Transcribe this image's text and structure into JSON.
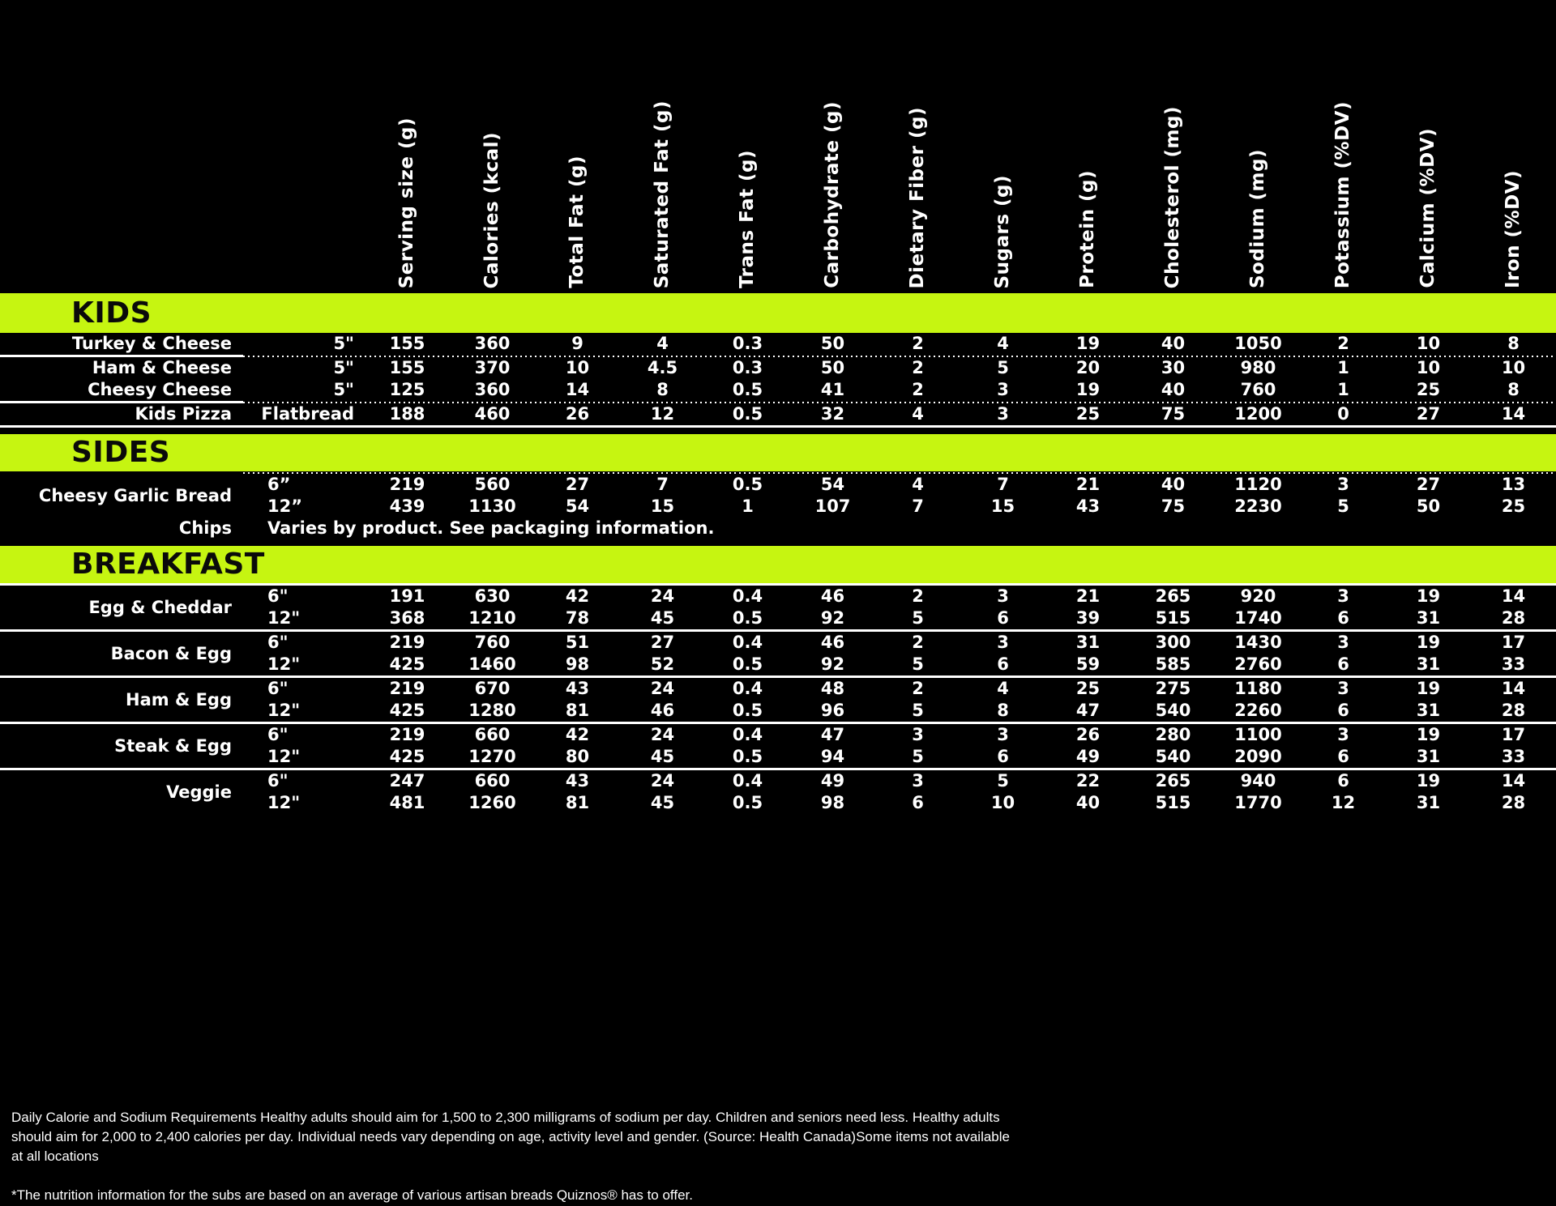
{
  "colors": {
    "background": "#000000",
    "accent_green": "#c6f511",
    "bar_text": "#0a0a0a",
    "table_text": "#ffffff"
  },
  "columns": [
    "Serving size (g)",
    "Calories (kcal)",
    "Total Fat (g)",
    "Saturated Fat (g)",
    "Trans Fat (g)",
    "Carbohydrate (g)",
    "Dietary Fiber (g)",
    "Sugars (g)",
    "Protein (g)",
    "Cholesterol (mg)",
    "Sodium (mg)",
    "Potassium (%DV)",
    "Calcium (%DV)",
    "Iron (%DV)"
  ],
  "sections": [
    {
      "title": "KIDS",
      "size_align": "right",
      "top_divider": null,
      "groups": [
        {
          "label": "Turkey & Cheese",
          "divider_after": "mixed",
          "rows": [
            {
              "size": "5\"",
              "values": [
                155,
                360,
                9,
                4,
                0.3,
                50,
                2,
                4,
                19,
                40,
                1050,
                2,
                10,
                8
              ]
            }
          ]
        },
        {
          "label": "Ham & Cheese",
          "divider_after": null,
          "rows": [
            {
              "size": "5\"",
              "values": [
                155,
                370,
                10,
                4.5,
                0.3,
                50,
                2,
                5,
                20,
                30,
                980,
                1,
                10,
                10
              ]
            }
          ]
        },
        {
          "label": "Cheesy Cheese",
          "divider_after": "mixed",
          "rows": [
            {
              "size": "5\"",
              "values": [
                125,
                360,
                14,
                8,
                0.5,
                41,
                2,
                3,
                19,
                40,
                760,
                1,
                25,
                8
              ]
            }
          ]
        },
        {
          "label": "Kids Pizza",
          "divider_after": "solid",
          "rows": [
            {
              "size": "Flatbread",
              "values": [
                188,
                460,
                26,
                12,
                0.5,
                32,
                4,
                3,
                25,
                75,
                1200,
                0,
                27,
                14
              ]
            }
          ]
        }
      ]
    },
    {
      "title": "SIDES",
      "size_align": "left",
      "top_divider": "dotted",
      "groups": [
        {
          "label": "Cheesy Garlic Bread",
          "divider_after": null,
          "rows": [
            {
              "size": "6”",
              "values": [
                219,
                560,
                27,
                7,
                0.5,
                54,
                4,
                7,
                21,
                40,
                1120,
                3,
                27,
                13
              ]
            },
            {
              "size": "12”",
              "values": [
                439,
                1130,
                54,
                15,
                1,
                107,
                7,
                15,
                43,
                75,
                2230,
                5,
                50,
                25
              ]
            }
          ]
        },
        {
          "label": "Chips",
          "divider_after": null,
          "note": "Varies by product. See packaging information."
        }
      ]
    },
    {
      "title": "BREAKFAST",
      "size_align": "left",
      "top_divider": "solid",
      "groups": [
        {
          "label": "Egg & Cheddar",
          "divider_after": "solid",
          "rows": [
            {
              "size": "6\"",
              "values": [
                191,
                630,
                42,
                24,
                0.4,
                46,
                2,
                3,
                21,
                265,
                920,
                3,
                19,
                14
              ]
            },
            {
              "size": "12\"",
              "values": [
                368,
                1210,
                78,
                45,
                0.5,
                92,
                5,
                6,
                39,
                515,
                1740,
                6,
                31,
                28
              ]
            }
          ]
        },
        {
          "label": "Bacon & Egg",
          "divider_after": "solid",
          "rows": [
            {
              "size": "6\"",
              "values": [
                219,
                760,
                51,
                27,
                0.4,
                46,
                2,
                3,
                31,
                300,
                1430,
                3,
                19,
                17
              ]
            },
            {
              "size": "12\"",
              "values": [
                425,
                1460,
                98,
                52,
                0.5,
                92,
                5,
                6,
                59,
                585,
                2760,
                6,
                31,
                33
              ]
            }
          ]
        },
        {
          "label": "Ham & Egg",
          "divider_after": "solid",
          "rows": [
            {
              "size": "6\"",
              "values": [
                219,
                670,
                43,
                24,
                0.4,
                48,
                2,
                4,
                25,
                275,
                1180,
                3,
                19,
                14
              ]
            },
            {
              "size": "12\"",
              "values": [
                425,
                1280,
                81,
                46,
                0.5,
                96,
                5,
                8,
                47,
                540,
                2260,
                6,
                31,
                28
              ]
            }
          ]
        },
        {
          "label": "Steak & Egg",
          "divider_after": "solid",
          "rows": [
            {
              "size": "6\"",
              "values": [
                219,
                660,
                42,
                24,
                0.4,
                47,
                3,
                3,
                26,
                280,
                1100,
                3,
                19,
                17
              ]
            },
            {
              "size": "12\"",
              "values": [
                425,
                1270,
                80,
                45,
                0.5,
                94,
                5,
                6,
                49,
                540,
                2090,
                6,
                31,
                33
              ]
            }
          ]
        },
        {
          "label": "Veggie",
          "divider_after": null,
          "rows": [
            {
              "size": "6\"",
              "values": [
                247,
                660,
                43,
                24,
                0.4,
                49,
                3,
                5,
                22,
                265,
                940,
                6,
                19,
                14
              ]
            },
            {
              "size": "12\"",
              "values": [
                481,
                1260,
                81,
                45,
                0.5,
                98,
                6,
                10,
                40,
                515,
                1770,
                12,
                31,
                28
              ]
            }
          ]
        }
      ]
    }
  ],
  "footer": {
    "note_lines": [
      "Daily Calorie and Sodium Requirements Healthy adults should aim for 1,500 to 2,300 milligrams of sodium per day. Children and seniors need less. Healthy adults",
      "should aim for 2,000 to 2,400 calories per day. Individual needs vary depending on age, activity level and gender. (Source: Health Canada)Some items not available",
      "at all locations"
    ],
    "footnote": "*The nutrition information for the subs are based on an average of various artisan breads Quiznos® has to offer."
  }
}
